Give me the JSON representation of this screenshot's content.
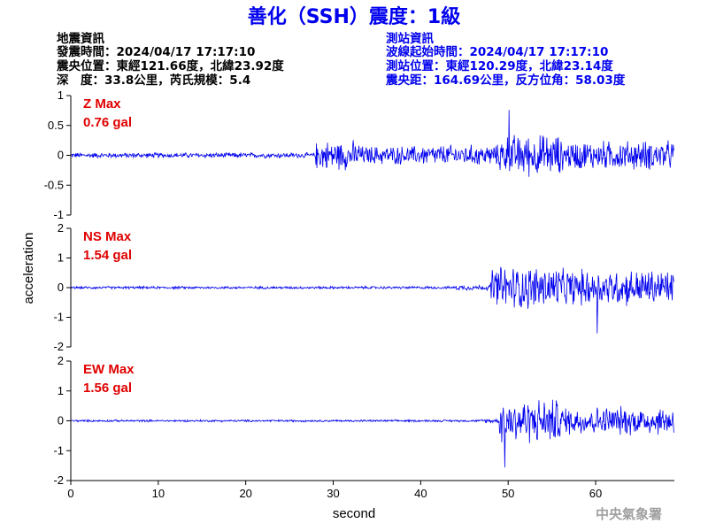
{
  "title": "善化（SSH）震度：1級",
  "event_info": {
    "heading": "地震資訊",
    "origin_time": "發震時間：2024/04/17 17:17:10",
    "epicenter": "震央位置：東經121.66度，北緯23.92度",
    "depth_magnitude": "深　度：33.8公里，芮氏規模：5.4"
  },
  "station_info": {
    "heading": "測站資訊",
    "wave_start": "波線起始時間：2024/04/17 17:17:10",
    "location": "測站位置：東經120.29度，北緯23.14度",
    "distance_azimuth": "震央距：164.69公里，反方位角：58.03度"
  },
  "footer": "中央氣象署",
  "colors": {
    "title": "#0000ee",
    "trace": "#0000ee",
    "panel_label": "#e00000",
    "axis": "#000000",
    "footer": "#a0a0a0"
  },
  "chart_data": {
    "type": "line",
    "xlabel": "second",
    "ylabel": "acceleration",
    "xlim": [
      0,
      69
    ],
    "xticks": [
      0,
      10,
      20,
      30,
      40,
      50,
      60
    ],
    "grid": false,
    "panels": [
      {
        "component": "Z",
        "label": "Z Max",
        "max_value": "0.76 gal",
        "ylim": [
          -1,
          1
        ],
        "yticks": [
          -1,
          -0.5,
          0,
          0.5,
          1
        ],
        "segments": [
          {
            "t_start": 0,
            "t_end": 28,
            "amplitude": 0.05
          },
          {
            "t_start": 28,
            "t_end": 33,
            "amplitude": 0.28
          },
          {
            "t_start": 33,
            "t_end": 40,
            "amplitude": 0.18
          },
          {
            "t_start": 40,
            "t_end": 49,
            "amplitude": 0.2
          },
          {
            "t_start": 49,
            "t_end": 56,
            "amplitude": 0.4
          },
          {
            "t_start": 56,
            "t_end": 69,
            "amplitude": 0.28
          }
        ],
        "peak": {
          "t": 50.1,
          "value": 0.76
        }
      },
      {
        "component": "NS",
        "label": "NS Max",
        "max_value": "1.54 gal",
        "ylim": [
          -2,
          2
        ],
        "yticks": [
          -2,
          -1,
          0,
          1,
          2
        ],
        "segments": [
          {
            "t_start": 0,
            "t_end": 44,
            "amplitude": 0.05
          },
          {
            "t_start": 44,
            "t_end": 48,
            "amplitude": 0.1
          },
          {
            "t_start": 48,
            "t_end": 56,
            "amplitude": 0.85
          },
          {
            "t_start": 56,
            "t_end": 69,
            "amplitude": 0.7
          }
        ],
        "peak": {
          "t": 60.2,
          "value": -1.54
        }
      },
      {
        "component": "EW",
        "label": "EW Max",
        "max_value": "1.56 gal",
        "ylim": [
          -2,
          2
        ],
        "yticks": [
          -2,
          -1,
          0,
          1,
          2
        ],
        "segments": [
          {
            "t_start": 0,
            "t_end": 47,
            "amplitude": 0.04
          },
          {
            "t_start": 47,
            "t_end": 49,
            "amplitude": 0.08
          },
          {
            "t_start": 49,
            "t_end": 56,
            "amplitude": 0.85
          },
          {
            "t_start": 56,
            "t_end": 69,
            "amplitude": 0.55
          }
        ],
        "peak": {
          "t": 49.6,
          "value": -1.56
        }
      }
    ]
  }
}
